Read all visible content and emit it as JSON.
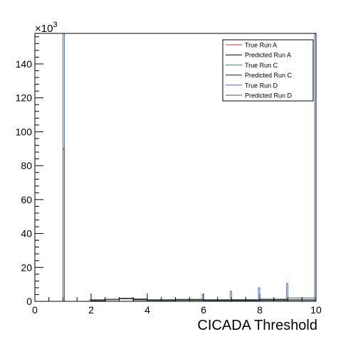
{
  "chart_data": {
    "type": "histogram",
    "xlabel": "CICADA Threshold",
    "ylabel": "",
    "y_multiplier_label": "×10",
    "y_multiplier_exponent": "3",
    "xlim": [
      0,
      10
    ],
    "ylim": [
      0,
      158
    ],
    "x_ticks": [
      0,
      2,
      4,
      6,
      8,
      10
    ],
    "y_ticks": [
      0,
      20,
      40,
      60,
      80,
      100,
      120,
      140
    ],
    "grid": false,
    "legend_position": "top-right",
    "series": [
      {
        "name": "True Run A",
        "color": "#cc3333",
        "bins": [
          [
            1.0,
            1.05,
            158
          ],
          [
            2.0,
            2.5,
            0.4
          ],
          [
            2.5,
            3.0,
            1.0
          ],
          [
            3.0,
            3.5,
            1.6
          ],
          [
            3.5,
            4.0,
            0.9
          ],
          [
            4.0,
            5.0,
            0.6
          ],
          [
            5.0,
            6.0,
            0.7
          ],
          [
            6.0,
            7.0,
            0.6
          ],
          [
            7.0,
            8.0,
            0.6
          ],
          [
            8.0,
            9.0,
            0.7
          ],
          [
            9.0,
            10.0,
            0.8
          ]
        ]
      },
      {
        "name": "Predicted Run A",
        "color": "#000000",
        "bins": [
          [
            1.0,
            1.05,
            90
          ],
          [
            2.0,
            2.5,
            0.5
          ],
          [
            2.5,
            3.0,
            1.2
          ],
          [
            3.0,
            3.5,
            1.8
          ],
          [
            3.5,
            4.0,
            1.0
          ],
          [
            4.0,
            5.0,
            0.8
          ],
          [
            5.0,
            6.0,
            0.9
          ],
          [
            6.0,
            7.0,
            0.7
          ],
          [
            7.0,
            8.0,
            0.7
          ],
          [
            8.0,
            9.0,
            0.8
          ],
          [
            9.0,
            10.0,
            0.9
          ]
        ]
      },
      {
        "name": "True Run C",
        "color": "#2e8b57",
        "bins": [
          [
            1.0,
            1.05,
            158
          ],
          [
            2.0,
            2.5,
            0.3
          ],
          [
            2.5,
            3.0,
            0.9
          ],
          [
            3.0,
            3.5,
            1.4
          ],
          [
            3.5,
            4.0,
            0.8
          ],
          [
            4.0,
            5.0,
            0.5
          ],
          [
            5.0,
            6.0,
            0.6
          ],
          [
            6.0,
            7.0,
            0.5
          ],
          [
            7.0,
            8.0,
            0.5
          ],
          [
            8.0,
            9.0,
            0.6
          ],
          [
            9.0,
            10.0,
            0.7
          ]
        ]
      },
      {
        "name": "Predicted Run C",
        "color": "#222222",
        "bins": [
          [
            1.0,
            1.05,
            90
          ],
          [
            2.0,
            2.5,
            0.4
          ],
          [
            2.5,
            3.0,
            1.1
          ],
          [
            3.0,
            3.5,
            1.7
          ],
          [
            3.5,
            4.0,
            0.9
          ],
          [
            4.0,
            5.0,
            0.7
          ],
          [
            5.0,
            6.0,
            0.8
          ],
          [
            6.0,
            7.0,
            0.6
          ],
          [
            7.0,
            8.0,
            0.6
          ],
          [
            8.0,
            9.0,
            0.7
          ],
          [
            9.0,
            10.0,
            0.8
          ]
        ]
      },
      {
        "name": "True Run D",
        "color": "#4a6fd6",
        "bins": [
          [
            1.0,
            1.05,
            158
          ],
          [
            1.95,
            2.0,
            1.0
          ],
          [
            5.95,
            6.0,
            4.0
          ],
          [
            6.95,
            7.0,
            6.0
          ],
          [
            7.95,
            8.0,
            8.0
          ],
          [
            8.95,
            9.0,
            10.5
          ],
          [
            9.95,
            10.0,
            158
          ]
        ]
      },
      {
        "name": "Predicted Run D",
        "color": "#555555",
        "bins": [
          [
            1.0,
            1.05,
            90
          ],
          [
            2.0,
            3.0,
            1.0
          ],
          [
            3.0,
            4.0,
            1.5
          ],
          [
            4.0,
            5.0,
            1.0
          ],
          [
            5.0,
            6.0,
            1.2
          ],
          [
            6.0,
            7.0,
            1.0
          ],
          [
            7.0,
            8.0,
            1.1
          ],
          [
            8.0,
            9.0,
            1.3
          ],
          [
            9.0,
            10.0,
            2.0
          ]
        ]
      }
    ]
  }
}
